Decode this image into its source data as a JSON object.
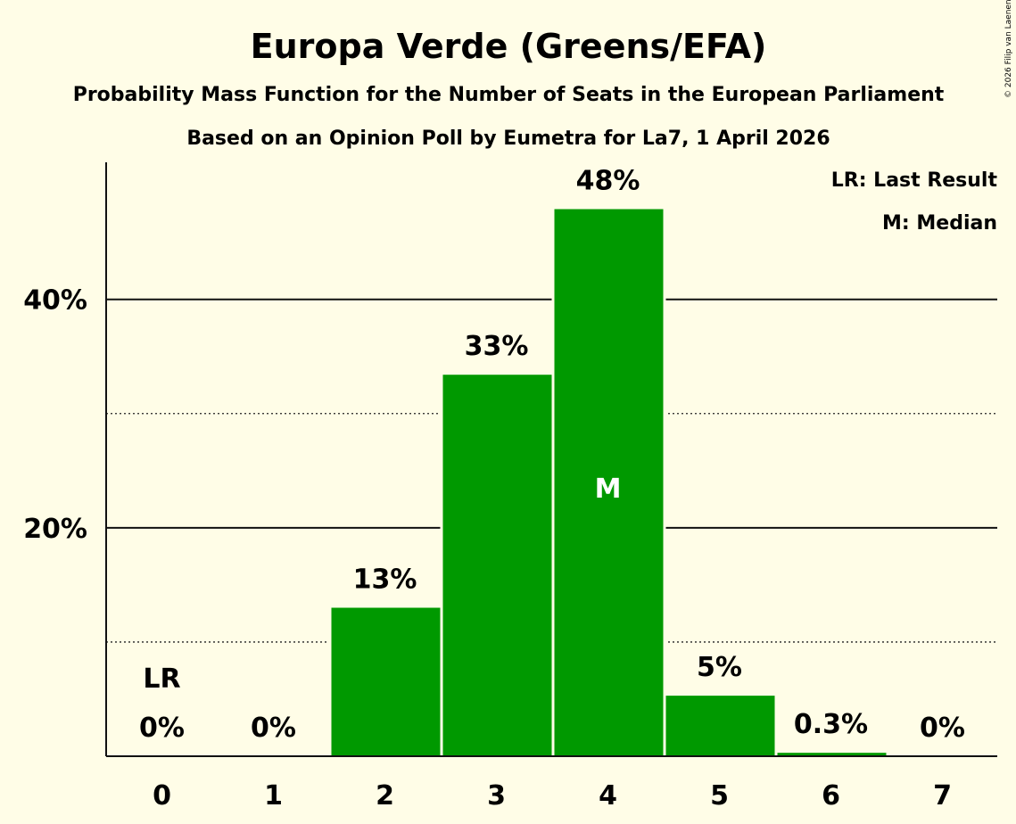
{
  "copyright": "© 2026 Filip van Laenen",
  "chart_data": {
    "type": "bar",
    "title": "Europa Verde (Greens/EFA)",
    "subtitle": "Probability Mass Function for the Number of Seats in the European Parliament",
    "subtitle2": "Based on an Opinion Poll by Eumetra for La7, 1 April 2026",
    "legend": [
      "LR: Last Result",
      "M: Median"
    ],
    "legend_position": "top-right",
    "categories": [
      "0",
      "1",
      "2",
      "3",
      "4",
      "5",
      "6",
      "7"
    ],
    "values": [
      0,
      0,
      13.0,
      33.4,
      47.9,
      5.3,
      0.3,
      0
    ],
    "labels": [
      "0%",
      "0%",
      "13%",
      "33%",
      "48%",
      "5%",
      "0.3%",
      "0%"
    ],
    "ylim": [
      0,
      52
    ],
    "yticks": [
      {
        "value": 20,
        "label": "20%"
      },
      {
        "value": 40,
        "label": "40%"
      }
    ],
    "minor_gridlines": [
      10,
      30
    ],
    "last_result": {
      "index": 0,
      "label": "LR"
    },
    "median": {
      "index": 4,
      "label": "M"
    },
    "bar_color": "#009900",
    "background": "#fffde7"
  }
}
